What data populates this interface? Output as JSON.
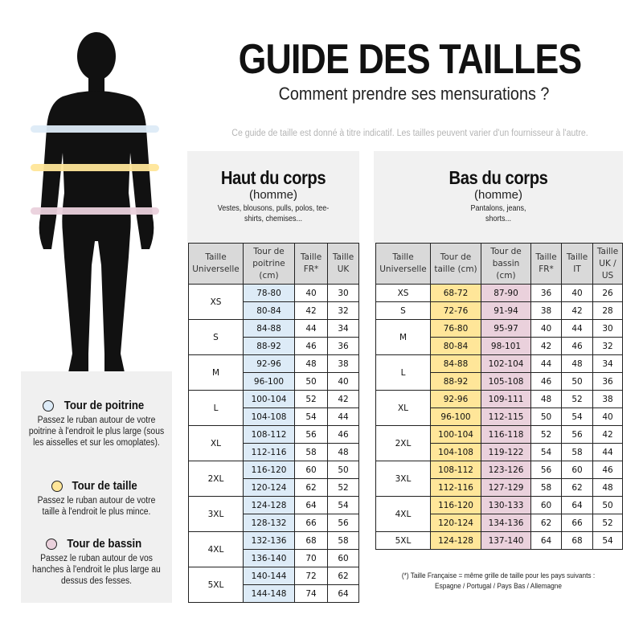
{
  "title": "GUIDE DES TAILLES",
  "subtitle": "Comment prendre ses mensurations ?",
  "disclaimer": "Ce guide de taille est donné à titre indicatif. Les tailles peuvent varier d'un fournisseur à l'autre.",
  "colors": {
    "chest": "#ddebf7",
    "waist": "#ffe699",
    "hips": "#ead1dc",
    "header": "#d9d9d9",
    "panel": "#f1f1f1"
  },
  "legend": [
    {
      "title": "Tour de poitrine",
      "text": "Passez le ruban autour de votre poitrine à l'endroit le plus large (sous les aisselles et sur les omoplates).",
      "color": "#ddebf7"
    },
    {
      "title": "Tour de taille",
      "text": "Passez le ruban autour de votre taille à l'endroit le plus mince.",
      "color": "#ffe699"
    },
    {
      "title": "Tour de bassin",
      "text": "Passez le ruban autour de vos hanches à l'endroit le plus large au dessus des fesses.",
      "color": "#ead1dc"
    }
  ],
  "top": {
    "title": "Haut du corps",
    "sub": "(homme)",
    "desc": "Vestes, blousons, pulls, polos, tee-shirts, chemises...",
    "headers": [
      "Taille Universelle",
      "Tour de poitrine (cm)",
      "Taille FR*",
      "Taille UK"
    ],
    "groups": [
      {
        "size": "XS",
        "rows": [
          [
            "78-80",
            "40",
            "30"
          ],
          [
            "80-84",
            "42",
            "32"
          ]
        ]
      },
      {
        "size": "S",
        "rows": [
          [
            "84-88",
            "44",
            "34"
          ],
          [
            "88-92",
            "46",
            "36"
          ]
        ]
      },
      {
        "size": "M",
        "rows": [
          [
            "92-96",
            "48",
            "38"
          ],
          [
            "96-100",
            "50",
            "40"
          ]
        ]
      },
      {
        "size": "L",
        "rows": [
          [
            "100-104",
            "52",
            "42"
          ],
          [
            "104-108",
            "54",
            "44"
          ]
        ]
      },
      {
        "size": "XL",
        "rows": [
          [
            "108-112",
            "56",
            "46"
          ],
          [
            "112-116",
            "58",
            "48"
          ]
        ]
      },
      {
        "size": "2XL",
        "rows": [
          [
            "116-120",
            "60",
            "50"
          ],
          [
            "120-124",
            "62",
            "52"
          ]
        ]
      },
      {
        "size": "3XL",
        "rows": [
          [
            "124-128",
            "64",
            "54"
          ],
          [
            "128-132",
            "66",
            "56"
          ]
        ]
      },
      {
        "size": "4XL",
        "rows": [
          [
            "132-136",
            "68",
            "58"
          ],
          [
            "136-140",
            "70",
            "60"
          ]
        ]
      },
      {
        "size": "5XL",
        "rows": [
          [
            "140-144",
            "72",
            "62"
          ],
          [
            "144-148",
            "74",
            "64"
          ]
        ]
      }
    ]
  },
  "bottom": {
    "title": "Bas du corps",
    "sub": "(homme)",
    "desc": "Pantalons, jeans, shorts...",
    "headers": [
      "Taille Universelle",
      "Tour de taille (cm)",
      "Tour de bassin (cm)",
      "Taille FR*",
      "Taille IT",
      "Taille UK / US"
    ],
    "groups": [
      {
        "size": "XS",
        "rows": [
          [
            "68-72",
            "87-90",
            "36",
            "40",
            "26"
          ]
        ]
      },
      {
        "size": "S",
        "rows": [
          [
            "72-76",
            "91-94",
            "38",
            "42",
            "28"
          ]
        ]
      },
      {
        "size": "M",
        "rows": [
          [
            "76-80",
            "95-97",
            "40",
            "44",
            "30"
          ],
          [
            "80-84",
            "98-101",
            "42",
            "46",
            "32"
          ]
        ]
      },
      {
        "size": "L",
        "rows": [
          [
            "84-88",
            "102-104",
            "44",
            "48",
            "34"
          ],
          [
            "88-92",
            "105-108",
            "46",
            "50",
            "36"
          ]
        ]
      },
      {
        "size": "XL",
        "rows": [
          [
            "92-96",
            "109-111",
            "48",
            "52",
            "38"
          ],
          [
            "96-100",
            "112-115",
            "50",
            "54",
            "40"
          ]
        ]
      },
      {
        "size": "2XL",
        "rows": [
          [
            "100-104",
            "116-118",
            "52",
            "56",
            "42"
          ],
          [
            "104-108",
            "119-122",
            "54",
            "58",
            "44"
          ]
        ]
      },
      {
        "size": "3XL",
        "rows": [
          [
            "108-112",
            "123-126",
            "56",
            "60",
            "46"
          ],
          [
            "112-116",
            "127-129",
            "58",
            "62",
            "48"
          ]
        ]
      },
      {
        "size": "4XL",
        "rows": [
          [
            "116-120",
            "130-133",
            "60",
            "64",
            "50"
          ],
          [
            "120-124",
            "134-136",
            "62",
            "66",
            "52"
          ]
        ]
      },
      {
        "size": "5XL",
        "rows": [
          [
            "124-128",
            "137-140",
            "64",
            "68",
            "54"
          ]
        ]
      }
    ]
  },
  "footnote": {
    "line1": "(*) Taille Française = même grille de taille pour les pays suivants :",
    "line2": "Espagne / Portugal / Pays Bas / Allemagne"
  }
}
